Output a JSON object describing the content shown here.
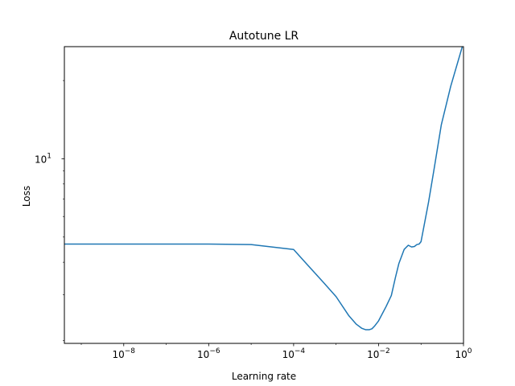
{
  "chart_data": {
    "type": "line",
    "title": "Autotune LR",
    "xlabel": "Learning rate",
    "ylabel": "Loss",
    "xscale": "log",
    "yscale": "log",
    "xlim": [
      4e-10,
      1
    ],
    "ylim": [
      1.95,
      27
    ],
    "grid": false,
    "legend": "none",
    "x_ticks": [
      {
        "value": 1e-08,
        "base": "10",
        "exp": "−8"
      },
      {
        "value": 1e-06,
        "base": "10",
        "exp": "−6"
      },
      {
        "value": 0.0001,
        "base": "10",
        "exp": "−4"
      },
      {
        "value": 0.01,
        "base": "10",
        "exp": "−2"
      },
      {
        "value": 1,
        "base": "10",
        "exp": "0"
      }
    ],
    "y_ticks": [
      {
        "value": 10,
        "base": "10",
        "exp": "1"
      }
    ],
    "series": [
      {
        "color": "#1f77b4",
        "x": [
          4e-10,
          1e-08,
          1e-07,
          1e-06,
          1e-05,
          0.0001,
          0.0002,
          0.0005,
          0.001,
          0.002,
          0.003,
          0.004,
          0.005,
          0.006,
          0.007,
          0.008,
          0.01,
          0.015,
          0.02,
          0.025,
          0.03,
          0.04,
          0.05,
          0.06,
          0.07,
          0.08,
          0.09,
          0.1,
          0.15,
          0.2,
          0.3,
          0.5,
          1
        ],
        "y": [
          4.7,
          4.7,
          4.7,
          4.7,
          4.68,
          4.48,
          3.95,
          3.35,
          2.95,
          2.49,
          2.31,
          2.23,
          2.2,
          2.2,
          2.22,
          2.27,
          2.38,
          2.7,
          2.98,
          3.5,
          3.95,
          4.48,
          4.65,
          4.58,
          4.6,
          4.68,
          4.7,
          4.8,
          6.8,
          9.0,
          13.5,
          19.0,
          28.0
        ]
      }
    ]
  }
}
